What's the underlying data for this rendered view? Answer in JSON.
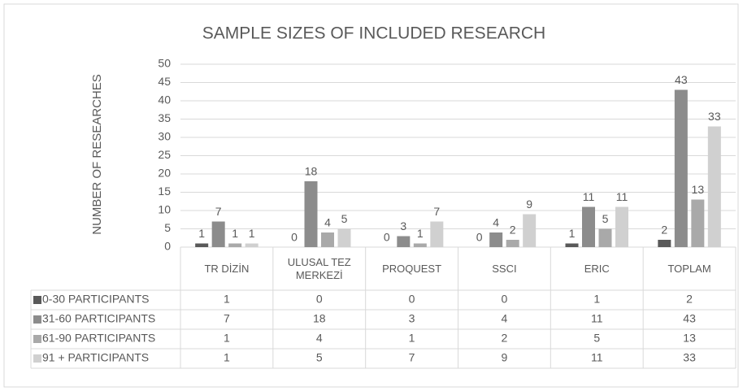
{
  "chart_data": {
    "type": "bar",
    "title": "SAMPLE SIZES OF INCLUDED RESEARCH",
    "y_label": "NUMBER OF RESEARCHES",
    "categories": [
      "TR DİZİN",
      "ULUSAL TEZ MERKEZİ",
      "PROQUEST",
      "SSCI",
      "ERIC",
      "TOPLAM"
    ],
    "series": [
      {
        "name": "0-30 PARTICIPANTS",
        "color": "#595959",
        "values": [
          1,
          0,
          0,
          0,
          1,
          2
        ]
      },
      {
        "name": "31-60 PARTICIPANTS",
        "color": "#8c8c8c",
        "values": [
          7,
          18,
          3,
          4,
          11,
          43
        ]
      },
      {
        "name": "61-90 PARTICIPANTS",
        "color": "#a9a9a9",
        "values": [
          1,
          4,
          1,
          2,
          5,
          13
        ]
      },
      {
        "name": "91 + PARTICIPANTS",
        "color": "#d0d0d0",
        "values": [
          1,
          5,
          7,
          9,
          11,
          33
        ]
      }
    ],
    "ylim": [
      0,
      50
    ],
    "yticks": [
      0,
      5,
      10,
      15,
      20,
      25,
      30,
      35,
      40,
      45,
      50
    ],
    "grid": true
  }
}
